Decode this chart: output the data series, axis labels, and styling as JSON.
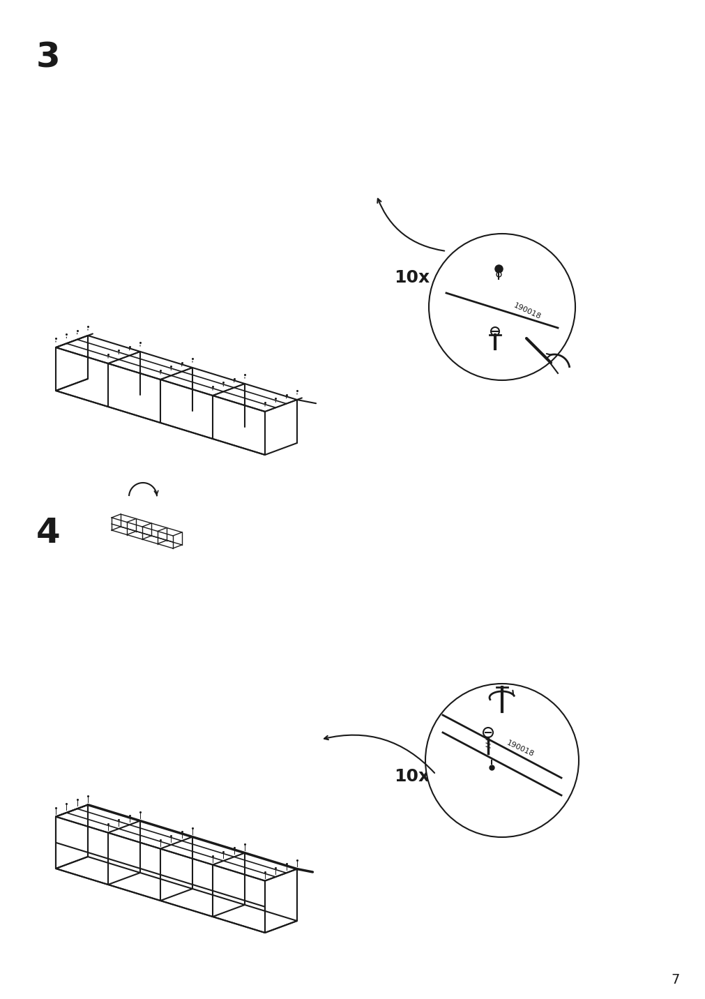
{
  "bg_color": "#ffffff",
  "line_color": "#1a1a1a",
  "step3_label": "3",
  "step4_label": "4",
  "count_label": "10x",
  "part_number": "190018",
  "page_number": "7",
  "title_fontsize": 36,
  "label_fontsize": 18,
  "page_fontsize": 14
}
